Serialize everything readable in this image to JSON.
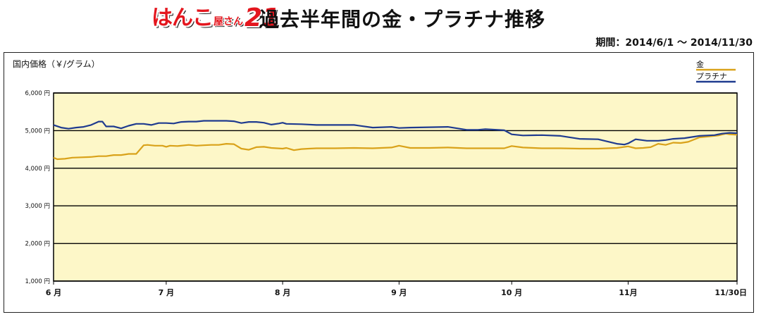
{
  "logo": {
    "main": "はんこ",
    "sub": "屋さん",
    "num": "21"
  },
  "header": {
    "title": "過去半年間の金・プラチナ推移",
    "period": "期間：2014/6/1 〜 2014/11/30"
  },
  "colors": {
    "gold": "#d9a21a",
    "platinum": "#1f3b8f",
    "plot_bg": "#fdf7c8",
    "grid": "#000000"
  },
  "chart_data": {
    "type": "line",
    "ylabel": "国内価格（￥/グラム）",
    "ylim": [
      1000,
      6000
    ],
    "y_ticks": [
      1000,
      2000,
      3000,
      4000,
      5000,
      6000
    ],
    "y_tick_labels": [
      "1,000 円",
      "2,000 円",
      "3,000 円",
      "4,000 円",
      "5,000 円",
      "6,000 円"
    ],
    "xlim": [
      0,
      182
    ],
    "x_ticks": [
      0,
      30,
      61,
      92,
      122,
      153,
      182
    ],
    "x_tick_labels": [
      "6 月",
      "7 月",
      "8 月",
      "9 月",
      "10 月",
      "11月",
      "11/30日"
    ],
    "legend_position": "top-right",
    "grid": true,
    "series": [
      {
        "name": "金",
        "color": "#d9a21a",
        "x": [
          0,
          1,
          3,
          5,
          10,
          12,
          14,
          16,
          18,
          20,
          22,
          24,
          25,
          27,
          29,
          30,
          31,
          33,
          36,
          38,
          40,
          42,
          44,
          46,
          48,
          50,
          52,
          54,
          56,
          58,
          61,
          62,
          64,
          66,
          68,
          70,
          75,
          80,
          85,
          90,
          92,
          95,
          100,
          105,
          110,
          115,
          120,
          122,
          125,
          130,
          135,
          140,
          145,
          150,
          153,
          155,
          157,
          159,
          161,
          163,
          165,
          167,
          169,
          172,
          175,
          177,
          179,
          180,
          182
        ],
        "y": [
          4280,
          4240,
          4250,
          4280,
          4300,
          4320,
          4320,
          4350,
          4350,
          4380,
          4380,
          4610,
          4620,
          4600,
          4600,
          4570,
          4600,
          4590,
          4620,
          4600,
          4610,
          4620,
          4620,
          4650,
          4640,
          4520,
          4490,
          4560,
          4570,
          4540,
          4520,
          4540,
          4480,
          4510,
          4520,
          4530,
          4530,
          4540,
          4530,
          4550,
          4600,
          4540,
          4540,
          4550,
          4530,
          4530,
          4530,
          4590,
          4550,
          4530,
          4530,
          4520,
          4520,
          4540,
          4580,
          4530,
          4540,
          4560,
          4650,
          4620,
          4680,
          4670,
          4700,
          4820,
          4850,
          4870,
          4920,
          4900,
          4890
        ]
      },
      {
        "name": "プラチナ",
        "color": "#1f3b8f",
        "x": [
          0,
          2,
          4,
          6,
          8,
          10,
          12,
          13,
          14,
          16,
          18,
          20,
          22,
          24,
          26,
          28,
          30,
          32,
          34,
          36,
          38,
          40,
          42,
          44,
          46,
          48,
          50,
          52,
          54,
          56,
          58,
          60,
          61,
          62,
          66,
          70,
          75,
          80,
          85,
          90,
          92,
          95,
          100,
          105,
          110,
          113,
          115,
          120,
          122,
          125,
          130,
          135,
          140,
          145,
          150,
          152,
          153,
          155,
          158,
          161,
          163,
          165,
          168,
          170,
          172,
          174,
          176,
          178,
          180,
          182
        ],
        "y": [
          5150,
          5080,
          5050,
          5080,
          5100,
          5150,
          5240,
          5240,
          5110,
          5110,
          5060,
          5130,
          5180,
          5180,
          5150,
          5200,
          5200,
          5190,
          5230,
          5240,
          5240,
          5260,
          5260,
          5260,
          5260,
          5250,
          5200,
          5230,
          5230,
          5210,
          5160,
          5190,
          5210,
          5180,
          5170,
          5150,
          5150,
          5150,
          5080,
          5100,
          5070,
          5080,
          5090,
          5100,
          5020,
          5020,
          5040,
          5010,
          4900,
          4870,
          4880,
          4860,
          4780,
          4770,
          4650,
          4630,
          4660,
          4770,
          4730,
          4730,
          4750,
          4780,
          4800,
          4830,
          4860,
          4870,
          4880,
          4920,
          4940,
          4930
        ]
      }
    ]
  }
}
